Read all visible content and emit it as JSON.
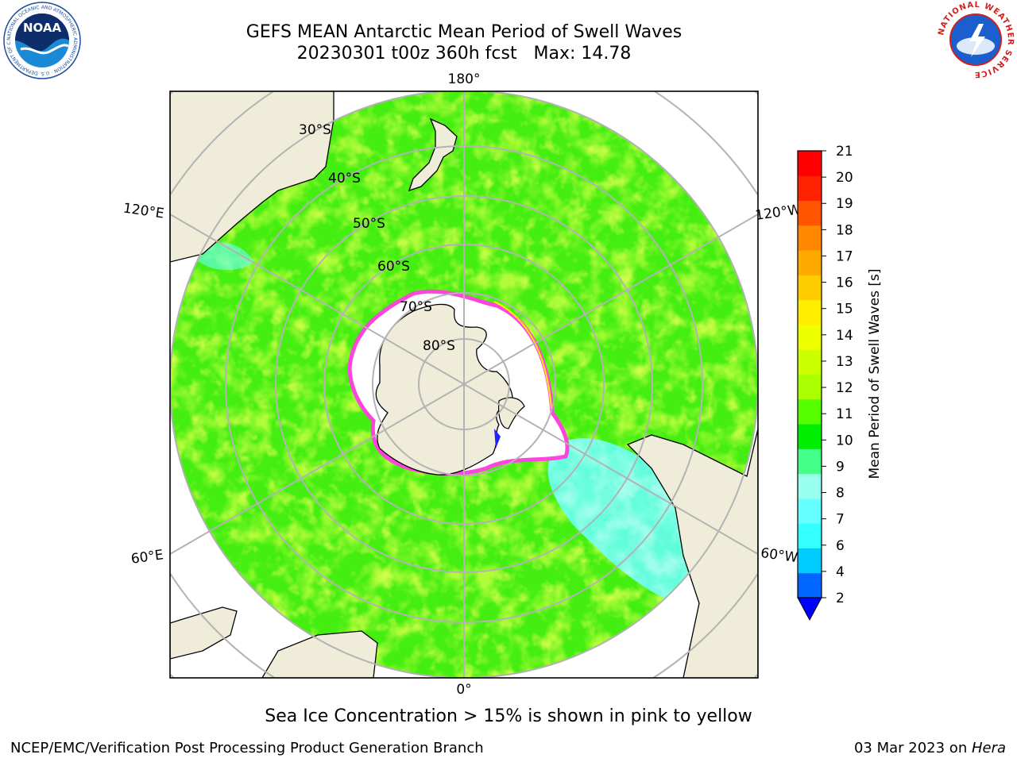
{
  "title": {
    "line1": "GEFS MEAN Antarctic Mean Period of Swell Waves",
    "line2": "20230301 t00z 360h fcst   Max: 14.78"
  },
  "map": {
    "projection": "south-polar-stereographic",
    "longitude_labels": {
      "top": "180°",
      "bottom": "0°",
      "left_upper": "120°E",
      "right_upper": "120°W",
      "left_lower": "60°E",
      "right_lower": "60°W"
    },
    "latitude_labels": [
      "30°S",
      "40°S",
      "50°S",
      "60°S",
      "70°S",
      "80°S"
    ],
    "colors": {
      "land": "#efecda",
      "ocean_dominant": "#44ee11",
      "ice_edge": "#ff44dd",
      "graticule": "#b3b3b3"
    }
  },
  "colorbar": {
    "label": "Mean Period of Swell Waves [s]",
    "ticks": [
      "21",
      "20",
      "19",
      "18",
      "17",
      "16",
      "15",
      "14",
      "13",
      "12",
      "11",
      "10",
      "9",
      "8",
      "7",
      "6",
      "4",
      "2"
    ],
    "levels": [
      2,
      4,
      6,
      7,
      8,
      9,
      10,
      11,
      12,
      13,
      14,
      15,
      16,
      17,
      18,
      19,
      20,
      21
    ],
    "colors": [
      "#0066ff",
      "#00ccff",
      "#33ffff",
      "#66ffff",
      "#99ffee",
      "#44ff88",
      "#00ee00",
      "#55ff00",
      "#aaff00",
      "#ccff00",
      "#eeff00",
      "#ffee00",
      "#ffcc00",
      "#ffaa00",
      "#ff8800",
      "#ff5500",
      "#ff2200",
      "#ff0000"
    ],
    "under_color": "#0000ff"
  },
  "note": "Sea Ice Concentration > 15% is shown in pink to yellow",
  "footer": {
    "left": "NCEP/EMC/Verification Post Processing Product Generation Branch",
    "right_date": "03 Mar 2023 on ",
    "right_host": "Hera"
  },
  "logos": {
    "left": "noaa-logo",
    "right": "nws-logo",
    "left_text": "NOAA",
    "left_ring_text": "NATIONAL OCEANIC AND ATMOSPHERIC ADMINISTRATION · U.S. DEPARTMENT OF COMMERCE",
    "right_ring_text": "NATIONAL WEATHER SERVICE"
  }
}
